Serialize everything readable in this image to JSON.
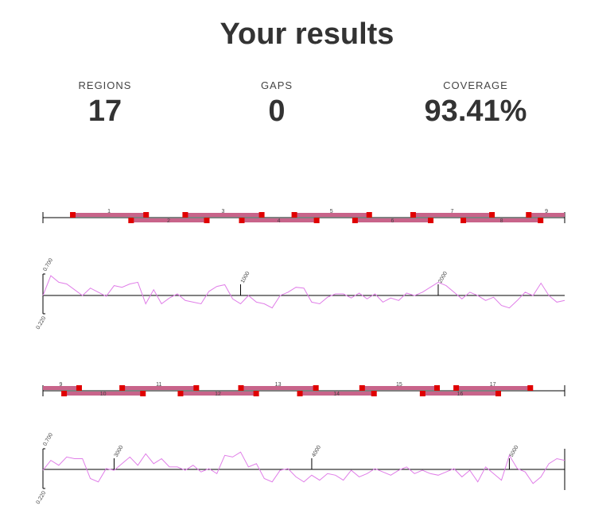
{
  "header": {
    "title": "Your results"
  },
  "stats": [
    {
      "label": "REGIONS",
      "value": "17"
    },
    {
      "label": "GAPS",
      "value": "0"
    },
    {
      "label": "COVERAGE",
      "value": "93.41%"
    }
  ],
  "regions": [
    {
      "label": "1",
      "start": 149,
      "end": 520
    },
    {
      "label": "2",
      "start": 444,
      "end": 827
    },
    {
      "label": "3",
      "start": 718,
      "end": 1105
    },
    {
      "label": "4",
      "start": 1004,
      "end": 1383
    },
    {
      "label": "5",
      "start": 1270,
      "end": 1649
    },
    {
      "label": "6",
      "start": 1577,
      "end": 1960
    },
    {
      "label": "7",
      "start": 1871,
      "end": 2270
    },
    {
      "label": "8",
      "start": 2125,
      "end": 2516
    },
    {
      "label": "9",
      "start": 2456,
      "end": 2821
    },
    {
      "label": "10",
      "start": 2745,
      "end": 3144
    },
    {
      "label": "11",
      "start": 3039,
      "end": 3414
    },
    {
      "label": "12",
      "start": 3334,
      "end": 3717
    },
    {
      "label": "13",
      "start": 3640,
      "end": 4019
    },
    {
      "label": "14",
      "start": 3938,
      "end": 4313
    },
    {
      "label": "15",
      "start": 4253,
      "end": 4632
    },
    {
      "label": "16",
      "start": 4559,
      "end": 4942
    },
    {
      "label": "17",
      "start": 4729,
      "end": 5104
    }
  ],
  "rows": [
    {
      "xlim": [
        0,
        2640
      ],
      "xticks": [
        1000,
        2000
      ],
      "ylim": [
        0.22,
        0.7
      ],
      "yticks": [
        {
          "value": 0.7,
          "label": "0.700"
        },
        {
          "value": 0.22,
          "label": "0.220"
        }
      ],
      "color": "#e07ee8",
      "x": [
        0,
        40,
        80,
        120,
        160,
        200,
        240,
        280,
        320,
        360,
        400,
        440,
        480,
        520,
        560,
        600,
        640,
        680,
        720,
        760,
        800,
        840,
        880,
        920,
        960,
        1000,
        1040,
        1080,
        1120,
        1160,
        1200,
        1240,
        1280,
        1320,
        1360,
        1400,
        1440,
        1480,
        1520,
        1560,
        1600,
        1640,
        1680,
        1720,
        1760,
        1800,
        1840,
        1880,
        1920,
        1960,
        2000,
        2040,
        2080,
        2120,
        2160,
        2200,
        2240,
        2280,
        2320,
        2360,
        2400,
        2440,
        2480,
        2520,
        2560,
        2600,
        2640
      ],
      "values": [
        0.44,
        0.68,
        0.6,
        0.58,
        0.51,
        0.44,
        0.53,
        0.48,
        0.43,
        0.56,
        0.54,
        0.58,
        0.6,
        0.34,
        0.51,
        0.34,
        0.41,
        0.46,
        0.38,
        0.36,
        0.34,
        0.49,
        0.55,
        0.57,
        0.4,
        0.34,
        0.44,
        0.36,
        0.34,
        0.29,
        0.44,
        0.48,
        0.54,
        0.53,
        0.36,
        0.34,
        0.42,
        0.46,
        0.46,
        0.41,
        0.47,
        0.4,
        0.46,
        0.36,
        0.41,
        0.38,
        0.47,
        0.44,
        0.48,
        0.54,
        0.6,
        0.56,
        0.48,
        0.4,
        0.48,
        0.44,
        0.38,
        0.42,
        0.32,
        0.29,
        0.38,
        0.48,
        0.44,
        0.59,
        0.44,
        0.36,
        0.38
      ]
    },
    {
      "xlim": [
        2640,
        5280
      ],
      "xticks": [
        3000,
        4000,
        5000
      ],
      "ylim": [
        0.22,
        0.7
      ],
      "yticks": [
        {
          "value": 0.7,
          "label": "0.700"
        },
        {
          "value": 0.22,
          "label": "0.220"
        }
      ],
      "color": "#e07ee8",
      "x": [
        2640,
        2680,
        2720,
        2760,
        2800,
        2840,
        2880,
        2920,
        2960,
        3000,
        3040,
        3080,
        3120,
        3160,
        3200,
        3240,
        3280,
        3320,
        3360,
        3400,
        3440,
        3480,
        3520,
        3560,
        3600,
        3640,
        3680,
        3720,
        3760,
        3800,
        3840,
        3880,
        3920,
        3960,
        4000,
        4040,
        4080,
        4120,
        4160,
        4200,
        4240,
        4280,
        4320,
        4360,
        4400,
        4440,
        4480,
        4520,
        4560,
        4600,
        4640,
        4680,
        4720,
        4760,
        4800,
        4840,
        4880,
        4920,
        4960,
        5000,
        5040,
        5080,
        5120,
        5160,
        5200,
        5240,
        5280
      ],
      "values": [
        0.44,
        0.56,
        0.5,
        0.6,
        0.58,
        0.58,
        0.34,
        0.3,
        0.46,
        0.44,
        0.52,
        0.6,
        0.5,
        0.64,
        0.52,
        0.58,
        0.48,
        0.48,
        0.44,
        0.5,
        0.42,
        0.46,
        0.4,
        0.62,
        0.6,
        0.66,
        0.48,
        0.52,
        0.34,
        0.3,
        0.44,
        0.46,
        0.36,
        0.3,
        0.38,
        0.32,
        0.4,
        0.38,
        0.32,
        0.44,
        0.36,
        0.4,
        0.46,
        0.42,
        0.38,
        0.44,
        0.48,
        0.4,
        0.44,
        0.4,
        0.38,
        0.42,
        0.46,
        0.36,
        0.44,
        0.3,
        0.48,
        0.4,
        0.32,
        0.62,
        0.46,
        0.42,
        0.28,
        0.36,
        0.52,
        0.58,
        0.56
      ]
    }
  ]
}
